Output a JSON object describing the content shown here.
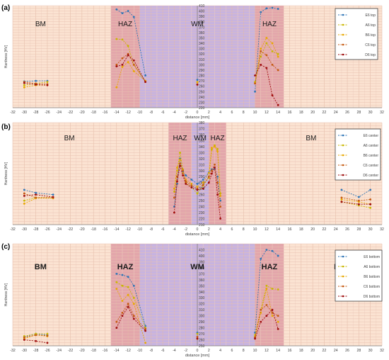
{
  "chart_data": [
    {
      "type": "line",
      "panel_label": "(a)",
      "xlabel": "distance [mm]",
      "ylabel": "Hardness [HV]",
      "xlim": [
        -32,
        32
      ],
      "ylim": [
        220,
        410
      ],
      "xticks": [
        "-32",
        "-30",
        "-28",
        "-26",
        "-24",
        "-22",
        "-20",
        "-18",
        "-16",
        "-14",
        "-12",
        "-10",
        "-8",
        "-6",
        "-4",
        "-2",
        "0",
        "2",
        "4",
        "6",
        "8",
        "10",
        "12",
        "14",
        "16",
        "18",
        "20",
        "22",
        "24",
        "26",
        "28",
        "30",
        "32"
      ],
      "yticks": [
        "220",
        "230",
        "240",
        "250",
        "260",
        "270",
        "280",
        "290",
        "300",
        "310",
        "320",
        "330",
        "340",
        "350",
        "360",
        "370",
        "380",
        "390",
        "400",
        "410"
      ],
      "zones": [
        {
          "label": "BM",
          "x0": -32,
          "x1": -15,
          "color": "#fbe3d2"
        },
        {
          "label": "HAZ",
          "x0": -15,
          "x1": -10,
          "color": "#e3a6ab"
        },
        {
          "label": "WM",
          "x0": -10,
          "x1": 10,
          "color": "#c7b3e0"
        },
        {
          "label": "HAZ",
          "x0": 10,
          "x1": 15,
          "color": "#e3a6ab"
        },
        {
          "label": "BM",
          "x0": 15,
          "x1": 32,
          "color": "#fbe3d2"
        }
      ],
      "legend_position": "top-right",
      "series": [
        {
          "name": "E6 top",
          "color": "#2e75b6",
          "x": [
            -30,
            -28,
            -26,
            -14,
            -13,
            -12,
            -11,
            -9,
            0,
            10,
            11,
            12,
            13,
            14
          ],
          "y": [
            269,
            270,
            270,
            403,
            396,
            400,
            389,
            280,
            272,
            250,
            398,
            405,
            406,
            404
          ]
        },
        {
          "name": "A6 top",
          "color": "#c9b700",
          "x": [
            -30,
            -28,
            -26,
            -14,
            -13,
            -12,
            -11,
            -9,
            0,
            10,
            11,
            12,
            13,
            14
          ],
          "y": [
            262,
            265,
            268,
            348,
            347,
            335,
            300,
            270,
            268,
            268,
            315,
            340,
            325,
            320
          ]
        },
        {
          "name": "B6 top",
          "color": "#e8a800",
          "x": [
            -30,
            -28,
            -26,
            -14,
            -13,
            -12,
            -11,
            -9,
            0,
            10,
            11,
            12,
            13,
            14
          ],
          "y": [
            258,
            262,
            262,
            258,
            296,
            305,
            288,
            270,
            267,
            266,
            330,
            350,
            340,
            315
          ]
        },
        {
          "name": "C6 top",
          "color": "#c55a11",
          "x": [
            -30,
            -28,
            -26,
            -14,
            -13,
            -12,
            -11,
            -9,
            0,
            10,
            11,
            12,
            13,
            14
          ],
          "y": [
            268,
            265,
            264,
            300,
            312,
            320,
            300,
            268,
            263,
            265,
            325,
            318,
            300,
            290
          ]
        },
        {
          "name": "D6 top",
          "color": "#9e0b0b",
          "x": [
            -30,
            -28,
            -26,
            -14,
            -13,
            -12,
            -11,
            -9,
            0,
            10,
            11,
            12,
            13,
            14
          ],
          "y": [
            266,
            263,
            262,
            297,
            300,
            318,
            308,
            268,
            263,
            280,
            300,
            294,
            243,
            225
          ]
        }
      ]
    },
    {
      "type": "line",
      "panel_label": "(b)",
      "xlabel": "distance [mm]",
      "ylabel": "Hardness [HV]",
      "xlim": [
        -32,
        32
      ],
      "ylim": [
        210,
        380
      ],
      "xticks": [
        "-32",
        "-30",
        "-28",
        "-26",
        "-24",
        "-22",
        "-20",
        "-18",
        "-16",
        "-14",
        "-12",
        "-10",
        "-8",
        "-6",
        "-4",
        "-2",
        "0",
        "2",
        "4",
        "6",
        "8",
        "10",
        "12",
        "14",
        "16",
        "18",
        "20",
        "22",
        "24",
        "26",
        "28",
        "30",
        "32"
      ],
      "yticks": [
        "210",
        "220",
        "230",
        "240",
        "250",
        "260",
        "270",
        "280",
        "290",
        "300",
        "310",
        "320",
        "330",
        "340",
        "350",
        "360",
        "370",
        "380"
      ],
      "zones": [
        {
          "label": "BM",
          "x0": -32,
          "x1": -5,
          "color": "#fbe3d2"
        },
        {
          "label": "HAZ",
          "x0": -5,
          "x1": -1,
          "color": "#e3a6ab"
        },
        {
          "label": "WM",
          "x0": -1,
          "x1": 2,
          "color": "#c7b3e0"
        },
        {
          "label": "HAZ",
          "x0": 2,
          "x1": 5,
          "color": "#e3a6ab"
        },
        {
          "label": "BM",
          "x0": 5,
          "x1": 32,
          "color": "#fbe3d2"
        }
      ],
      "legend_position": "top-right",
      "series": [
        {
          "name": "E6 center",
          "color": "#2e75b6",
          "x": [
            -30,
            -28,
            -25,
            -4,
            -3.5,
            -3,
            -2.5,
            -2,
            -1,
            0,
            1,
            2,
            2.5,
            3,
            3.5,
            4,
            25,
            28,
            30
          ],
          "y": [
            268,
            263,
            260,
            240,
            278,
            320,
            298,
            292,
            285,
            278,
            285,
            297,
            302,
            303,
            290,
            250,
            268,
            256,
            268
          ]
        },
        {
          "name": "A6 center",
          "color": "#c9b700",
          "x": [
            -30,
            -28,
            -25,
            -4,
            -3.5,
            -3,
            -2.5,
            -2,
            -1,
            0,
            1,
            2,
            2.5,
            3,
            3.5,
            4,
            25,
            28,
            30
          ],
          "y": [
            250,
            255,
            255,
            265,
            300,
            330,
            302,
            280,
            272,
            262,
            275,
            288,
            335,
            342,
            336,
            262,
            248,
            242,
            238
          ]
        },
        {
          "name": "B6 center",
          "color": "#e8a800",
          "x": [
            -30,
            -28,
            -25,
            -4,
            -3.5,
            -3,
            -2.5,
            -2,
            -1,
            0,
            1,
            2,
            2.5,
            3,
            3.5,
            4,
            25,
            28,
            30
          ],
          "y": [
            245,
            254,
            254,
            270,
            305,
            318,
            296,
            285,
            278,
            273,
            280,
            296,
            338,
            340,
            332,
            258,
            252,
            248,
            244
          ]
        },
        {
          "name": "C6 center",
          "color": "#c55a11",
          "x": [
            -30,
            -28,
            -25,
            -4,
            -3.5,
            -3,
            -2.5,
            -2,
            -1,
            0,
            1,
            2,
            2.5,
            3,
            3.5,
            4,
            25,
            28,
            30
          ],
          "y": [
            262,
            255,
            255,
            255,
            290,
            312,
            300,
            282,
            275,
            270,
            276,
            290,
            300,
            310,
            280,
            240,
            255,
            250,
            252
          ]
        },
        {
          "name": "D6 center",
          "color": "#9e0b0b",
          "x": [
            -30,
            -28,
            -25,
            -4,
            -3.5,
            -3,
            -2.5,
            -2,
            -1,
            0,
            1,
            2,
            2.5,
            3,
            3.5,
            4,
            25,
            28,
            30
          ],
          "y": [
            258,
            260,
            256,
            230,
            282,
            308,
            292,
            278,
            272,
            268,
            270,
            280,
            295,
            305,
            260,
            220,
            248,
            244,
            244
          ]
        }
      ]
    },
    {
      "type": "line",
      "panel_label": "(c)",
      "xlabel": "distance [mm]",
      "ylabel": "Hardness [HV]",
      "xlim": [
        -32,
        32
      ],
      "ylim": [
        250,
        420
      ],
      "xticks": [
        "-32",
        "-30",
        "-28",
        "-26",
        "-24",
        "-22",
        "-20",
        "-18",
        "-16",
        "-14",
        "-12",
        "-10",
        "-8",
        "-6",
        "-4",
        "-2",
        "0",
        "2",
        "4",
        "6",
        "8",
        "10",
        "12",
        "14",
        "16",
        "18",
        "20",
        "22",
        "24",
        "26",
        "28",
        "30",
        "32"
      ],
      "yticks": [
        "250",
        "260",
        "270",
        "280",
        "290",
        "300",
        "310",
        "320",
        "330",
        "340",
        "350",
        "360",
        "370",
        "380",
        "390",
        "400",
        "410"
      ],
      "zones": [
        {
          "label": "BM",
          "x0": -32,
          "x1": -15,
          "color": "#fbe3d2"
        },
        {
          "label": "HAZ",
          "x0": -15,
          "x1": -10,
          "color": "#e3a6ab"
        },
        {
          "label": "WM",
          "x0": -10,
          "x1": 10,
          "color": "#c7b3e0"
        },
        {
          "label": "HAZ",
          "x0": 10,
          "x1": 15,
          "color": "#e3a6ab"
        },
        {
          "label": "BM",
          "x0": 15,
          "x1": 32,
          "color": "#fbe3d2"
        }
      ],
      "legend_position": "top-right",
      "series": [
        {
          "name": "E6 bottom",
          "color": "#2e75b6",
          "x": [
            -30,
            -28,
            -26,
            -14,
            -13,
            -12,
            -11,
            -9,
            0,
            10,
            11,
            12,
            13,
            14
          ],
          "y": [
            265,
            270,
            268,
            370,
            368,
            365,
            350,
            283,
            272,
            272,
            395,
            410,
            408,
            400
          ]
        },
        {
          "name": "A6 bottom",
          "color": "#c9b700",
          "x": [
            -30,
            -28,
            -26,
            -14,
            -13,
            -12,
            -11,
            -9,
            0,
            10,
            11,
            12,
            13,
            14
          ],
          "y": [
            266,
            270,
            270,
            356,
            350,
            348,
            330,
            280,
            270,
            268,
            310,
            350,
            345,
            344
          ]
        },
        {
          "name": "B6 bottom",
          "color": "#e8a800",
          "x": [
            -30,
            -28,
            -26,
            -14,
            -13,
            -12,
            -11,
            -9,
            0,
            10,
            11,
            12,
            13,
            14
          ],
          "y": [
            262,
            268,
            266,
            345,
            325,
            335,
            320,
            255,
            262,
            265,
            305,
            345,
            300,
            290
          ]
        },
        {
          "name": "C6 bottom",
          "color": "#c55a11",
          "x": [
            -30,
            -28,
            -26,
            -14,
            -13,
            -12,
            -11,
            -9,
            0,
            10,
            11,
            12,
            13,
            14
          ],
          "y": [
            264,
            268,
            267,
            290,
            305,
            320,
            300,
            278,
            265,
            264,
            310,
            318,
            305,
            300
          ]
        },
        {
          "name": "D6 bottom",
          "color": "#9e0b0b",
          "x": [
            -30,
            -28,
            -26,
            -14,
            -13,
            -12,
            -11,
            -9,
            0,
            10,
            11,
            12,
            13,
            14
          ],
          "y": [
            260,
            258,
            255,
            280,
            300,
            315,
            295,
            275,
            262,
            262,
            290,
            300,
            310,
            278
          ]
        }
      ]
    }
  ]
}
